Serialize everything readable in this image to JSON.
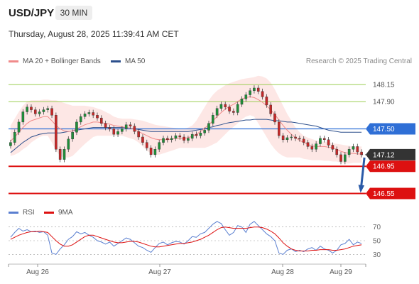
{
  "header": {
    "symbol": "USD/JPY",
    "timeframe": "30 MIN",
    "datetime": "Thursday, August 28, 2025 11:39:41 AM CET"
  },
  "legend": {
    "ma20_label": "MA 20 + Bollinger Bands",
    "ma50_label": "MA 50",
    "ma20_color": "#f08a8a",
    "ma50_color": "#2c4f8c",
    "credit": "Research © 2025 Trading Central"
  },
  "rsi_legend": {
    "rsi_label": "RSI",
    "ma_label": "9MA",
    "rsi_color": "#5a7fd0",
    "ma_color": "#dd1111"
  },
  "chart_data": [
    {
      "type": "line",
      "ylim": [
        146.42,
        148.35
      ],
      "x_ticks": [
        "Aug 26",
        "Aug 27",
        "Aug 28",
        "Aug 29"
      ],
      "levels": [
        {
          "value": 148.15,
          "label": "148.15",
          "kind": "target",
          "color": "#9acd50"
        },
        {
          "value": 147.9,
          "label": "147.90",
          "kind": "target",
          "color": "#9acd50"
        },
        {
          "value": 147.5,
          "label": "147.50",
          "kind": "pivot",
          "color": "#2f6fd6"
        },
        {
          "value": 147.12,
          "label": "147.12",
          "kind": "last-price",
          "color": "#333333"
        },
        {
          "value": 146.95,
          "label": "146.95",
          "kind": "support",
          "color": "#dd1111"
        },
        {
          "value": 146.55,
          "label": "146.55",
          "kind": "support",
          "color": "#dd1111"
        }
      ],
      "price_close": [
        147.3,
        147.45,
        147.6,
        147.75,
        147.82,
        147.78,
        147.72,
        147.75,
        147.78,
        147.8,
        147.7,
        147.2,
        147.05,
        147.2,
        147.35,
        147.45,
        147.6,
        147.68,
        147.72,
        147.74,
        147.7,
        147.66,
        147.58,
        147.52,
        147.5,
        147.42,
        147.46,
        147.5,
        147.56,
        147.54,
        147.46,
        147.38,
        147.3,
        147.22,
        147.12,
        147.2,
        147.3,
        147.36,
        147.34,
        147.36,
        147.4,
        147.38,
        147.33,
        147.36,
        147.42,
        147.4,
        147.44,
        147.48,
        147.58,
        147.7,
        147.8,
        147.86,
        147.82,
        147.76,
        147.74,
        147.86,
        147.94,
        148.0,
        148.06,
        148.1,
        148.05,
        147.97,
        147.85,
        147.72,
        147.6,
        147.4,
        147.34,
        147.37,
        147.38,
        147.36,
        147.35,
        147.3,
        147.24,
        147.2,
        147.28,
        147.36,
        147.34,
        147.26,
        147.2,
        147.12,
        147.02,
        147.12,
        147.2,
        147.24,
        147.16,
        147.12
      ],
      "ma20": [
        147.32,
        147.38,
        147.45,
        147.52,
        147.58,
        147.62,
        147.64,
        147.66,
        147.68,
        147.68,
        147.62,
        147.55,
        147.5,
        147.47,
        147.46,
        147.47,
        147.5,
        147.53,
        147.56,
        147.58,
        147.6,
        147.6,
        147.59,
        147.58,
        147.57,
        147.55,
        147.54,
        147.53,
        147.52,
        147.51,
        147.49,
        147.46,
        147.43,
        147.4,
        147.37,
        147.35,
        147.34,
        147.34,
        147.34,
        147.35,
        147.36,
        147.36,
        147.36,
        147.37,
        147.39,
        147.42,
        147.46,
        147.51,
        147.56,
        147.62,
        147.68,
        147.74,
        147.79,
        147.83,
        147.86,
        147.9,
        147.94,
        147.96,
        147.97,
        147.96,
        147.93,
        147.89,
        147.84,
        147.78,
        147.71,
        147.63,
        147.55,
        147.48,
        147.42,
        147.37,
        147.33,
        147.3,
        147.27,
        147.25,
        147.24,
        147.24,
        147.24,
        147.23,
        147.22,
        147.2,
        147.17,
        147.15,
        147.14,
        147.14,
        147.13,
        147.13
      ],
      "bb_upper": [
        147.55,
        147.65,
        147.75,
        147.84,
        147.9,
        147.92,
        147.92,
        147.92,
        147.93,
        147.93,
        147.92,
        147.92,
        147.9,
        147.88,
        147.86,
        147.84,
        147.84,
        147.84,
        147.84,
        147.83,
        147.82,
        147.8,
        147.78,
        147.75,
        147.72,
        147.68,
        147.66,
        147.65,
        147.65,
        147.65,
        147.64,
        147.63,
        147.62,
        147.6,
        147.58,
        147.56,
        147.55,
        147.54,
        147.53,
        147.52,
        147.51,
        147.5,
        147.5,
        147.52,
        147.55,
        147.62,
        147.72,
        147.82,
        147.92,
        148.0,
        148.06,
        148.1,
        148.14,
        148.17,
        148.19,
        148.21,
        148.23,
        148.24,
        148.25,
        148.26,
        148.28,
        148.27,
        148.24,
        148.18,
        148.08,
        147.96,
        147.84,
        147.72,
        147.62,
        147.52,
        147.45,
        147.4,
        147.37,
        147.35,
        147.33,
        147.32,
        147.31,
        147.3,
        147.29,
        147.28,
        147.27,
        147.26,
        147.25,
        147.24,
        147.24,
        147.24
      ],
      "bb_lower": [
        147.1,
        147.12,
        147.15,
        147.2,
        147.24,
        147.3,
        147.34,
        147.38,
        147.4,
        147.4,
        147.3,
        147.18,
        147.1,
        147.08,
        147.08,
        147.1,
        147.16,
        147.22,
        147.28,
        147.33,
        147.38,
        147.4,
        147.4,
        147.4,
        147.4,
        147.4,
        147.4,
        147.4,
        147.38,
        147.36,
        147.34,
        147.3,
        147.24,
        147.18,
        147.14,
        147.12,
        147.12,
        147.14,
        147.16,
        147.18,
        147.2,
        147.22,
        147.22,
        147.22,
        147.22,
        147.22,
        147.22,
        147.22,
        147.24,
        147.27,
        147.3,
        147.36,
        147.42,
        147.48,
        147.53,
        147.58,
        147.64,
        147.68,
        147.7,
        147.68,
        147.58,
        147.48,
        147.38,
        147.28,
        147.2,
        147.14,
        147.1,
        147.08,
        147.08,
        147.08,
        147.08,
        147.06,
        147.05,
        147.04,
        147.04,
        147.04,
        147.03,
        147.03,
        147.02,
        147.02,
        147.0,
        146.99,
        146.99,
        147.0,
        147.0,
        147.0
      ],
      "ma50": [
        147.15,
        147.2,
        147.25,
        147.3,
        147.34,
        147.38,
        147.4,
        147.42,
        147.43,
        147.44,
        147.44,
        147.44,
        147.44,
        147.45,
        147.46,
        147.47,
        147.48,
        147.49,
        147.5,
        147.51,
        147.52,
        147.52,
        147.52,
        147.52,
        147.52,
        147.52,
        147.52,
        147.52,
        147.52,
        147.51,
        147.5,
        147.49,
        147.48,
        147.47,
        147.46,
        147.46,
        147.46,
        147.46,
        147.46,
        147.46,
        147.46,
        147.46,
        147.46,
        147.46,
        147.47,
        147.48,
        147.49,
        147.5,
        147.52,
        147.53,
        147.55,
        147.56,
        147.58,
        147.59,
        147.6,
        147.61,
        147.62,
        147.63,
        147.63,
        147.64,
        147.64,
        147.64,
        147.64,
        147.63,
        147.62,
        147.62,
        147.61,
        147.6,
        147.6,
        147.59,
        147.58,
        147.57,
        147.56,
        147.55,
        147.54,
        147.52,
        147.5,
        147.48,
        147.47,
        147.46,
        147.45,
        147.45,
        147.45,
        147.45,
        147.45,
        147.45
      ]
    },
    {
      "type": "line",
      "ylim": [
        20,
        80
      ],
      "y_ticks": [
        "70",
        "50",
        "30"
      ],
      "rsi": [
        55,
        62,
        68,
        64,
        66,
        63,
        64,
        62,
        63,
        58,
        32,
        30,
        38,
        44,
        52,
        56,
        63,
        60,
        62,
        58,
        55,
        50,
        48,
        45,
        48,
        42,
        46,
        50,
        54,
        52,
        47,
        42,
        40,
        36,
        33,
        40,
        46,
        48,
        44,
        47,
        49,
        48,
        45,
        50,
        56,
        55,
        60,
        62,
        68,
        74,
        78,
        75,
        66,
        58,
        62,
        72,
        70,
        62,
        74,
        78,
        72,
        66,
        60,
        56,
        50,
        32,
        30,
        36,
        38,
        34,
        36,
        34,
        38,
        40,
        36,
        42,
        38,
        36,
        32,
        36,
        44,
        46,
        52,
        44,
        48,
        46
      ],
      "rsi_ma": [
        52,
        55,
        58,
        60,
        62,
        63,
        63,
        64,
        63,
        62,
        56,
        50,
        45,
        42,
        42,
        44,
        48,
        52,
        56,
        58,
        58,
        56,
        54,
        52,
        50,
        48,
        47,
        47,
        48,
        49,
        49,
        48,
        46,
        44,
        42,
        41,
        41,
        42,
        43,
        44,
        45,
        46,
        46,
        47,
        48,
        50,
        52,
        55,
        58,
        62,
        66,
        69,
        70,
        69,
        68,
        68,
        68,
        68,
        69,
        70,
        70,
        69,
        67,
        64,
        60,
        54,
        47,
        42,
        38,
        36,
        35,
        35,
        35,
        36,
        36,
        37,
        37,
        37,
        36,
        36,
        37,
        38,
        40,
        42,
        43,
        44
      ]
    }
  ]
}
